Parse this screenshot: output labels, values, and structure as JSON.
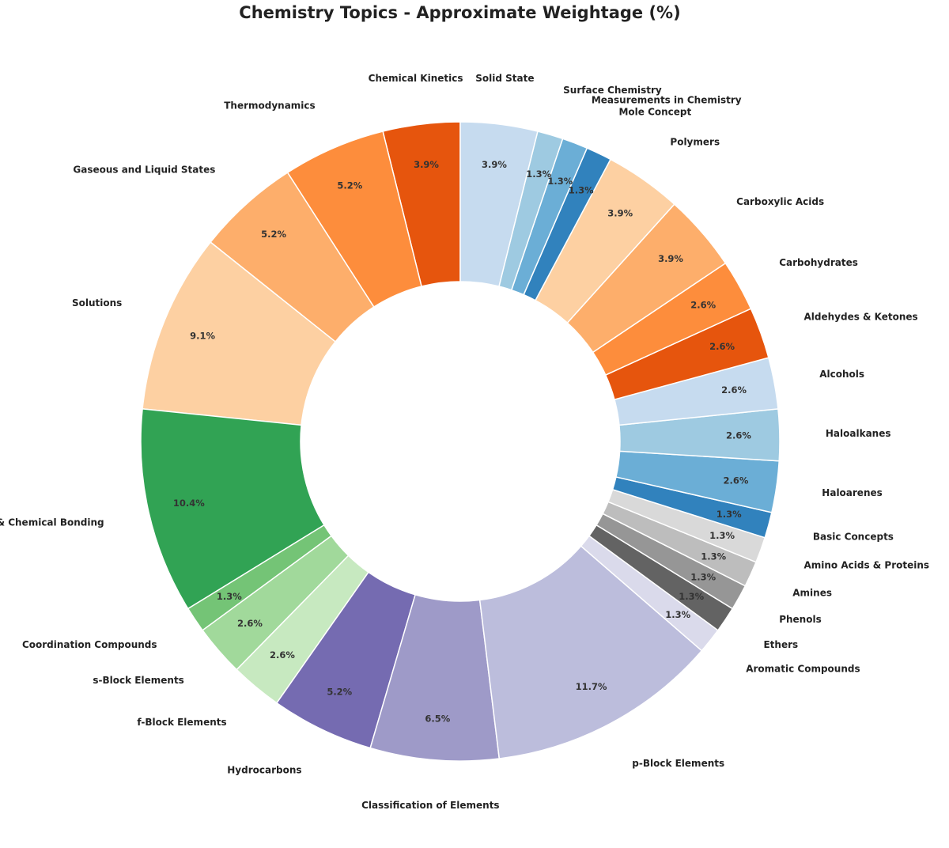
{
  "chart_data": {
    "type": "pie",
    "variant": "donut",
    "title": "Chemistry Topics - Approximate Weightage (%)",
    "units": "%",
    "start_angle_deg": 90,
    "direction": "counterclockwise",
    "slices": [
      {
        "label": "Chemical Kinetics",
        "value": 3.9,
        "color": "#e6550d"
      },
      {
        "label": "Thermodynamics",
        "value": 5.2,
        "color": "#fd8d3c"
      },
      {
        "label": "Gaseous and Liquid States",
        "value": 5.2,
        "color": "#fdae6b"
      },
      {
        "label": "Solutions",
        "value": 9.1,
        "color": "#fdd0a2"
      },
      {
        "label": "Atomic Structure & Chemical Bonding",
        "value": 10.4,
        "color": "#31a354"
      },
      {
        "label": "Coordination Compounds",
        "value": 1.3,
        "color": "#74c476"
      },
      {
        "label": "s-Block Elements",
        "value": 2.6,
        "color": "#a1d99b"
      },
      {
        "label": "f-Block Elements",
        "value": 2.6,
        "color": "#c7e9c0"
      },
      {
        "label": "Hydrocarbons",
        "value": 5.2,
        "color": "#756bb1"
      },
      {
        "label": "Classification of Elements",
        "value": 6.5,
        "color": "#9e9ac8"
      },
      {
        "label": "p-Block Elements",
        "value": 11.7,
        "color": "#bcbddc"
      },
      {
        "label": "Aromatic Compounds",
        "value": 1.3,
        "color": "#dadaeb"
      },
      {
        "label": "Ethers",
        "value": 1.3,
        "color": "#636363"
      },
      {
        "label": "Phenols",
        "value": 1.3,
        "color": "#969696"
      },
      {
        "label": "Amines",
        "value": 1.3,
        "color": "#bdbdbd"
      },
      {
        "label": "Amino Acids & Proteins",
        "value": 1.3,
        "color": "#d9d9d9"
      },
      {
        "label": "Basic Concepts",
        "value": 1.3,
        "color": "#3182bd"
      },
      {
        "label": "Haloarenes",
        "value": 2.6,
        "color": "#6baed6"
      },
      {
        "label": "Haloalkanes",
        "value": 2.6,
        "color": "#9ecae1"
      },
      {
        "label": "Alcohols",
        "value": 2.6,
        "color": "#c6dbef"
      },
      {
        "label": "Aldehydes & Ketones",
        "value": 2.6,
        "color": "#e6550d"
      },
      {
        "label": "Carbohydrates",
        "value": 2.6,
        "color": "#fd8d3c"
      },
      {
        "label": "Carboxylic Acids",
        "value": 3.9,
        "color": "#fdae6b"
      },
      {
        "label": "Polymers",
        "value": 3.9,
        "color": "#fdd0a2"
      },
      {
        "label": "Mole Concept",
        "value": 1.3,
        "color": "#3182bd"
      },
      {
        "label": "Measurements in Chemistry",
        "value": 1.3,
        "color": "#6baed6"
      },
      {
        "label": "Surface Chemistry",
        "value": 1.3,
        "color": "#9ecae1"
      },
      {
        "label": "Solid State",
        "value": 3.9,
        "color": "#c6dbef"
      }
    ]
  }
}
